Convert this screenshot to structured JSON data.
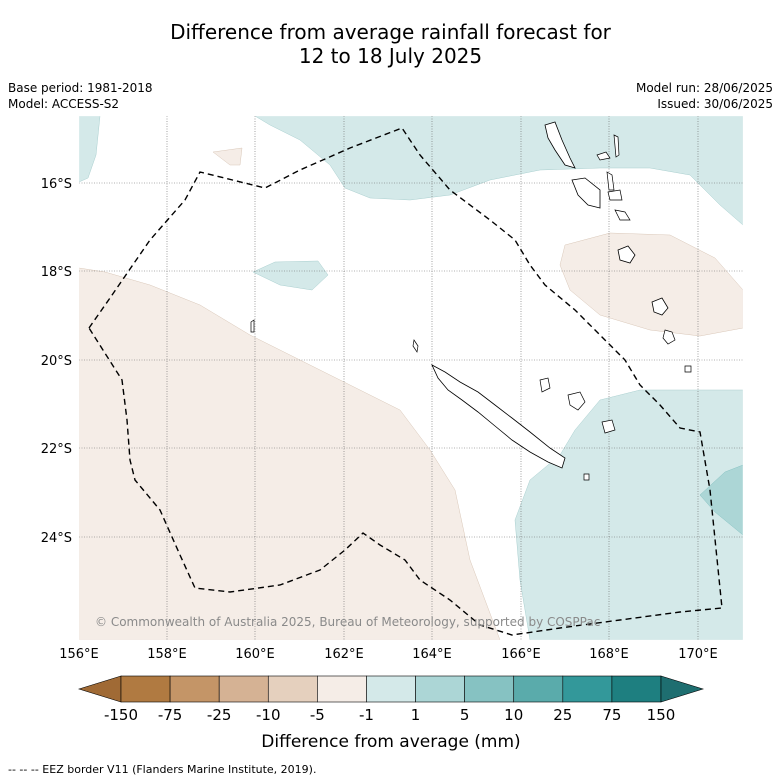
{
  "title_line1": "Difference from average rainfall forecast for",
  "title_line2": "12 to 18 July 2025",
  "base_period": "Base period: 1981-2018",
  "model": "Model: ACCESS-S2",
  "model_run": "Model run: 28/06/2025",
  "issued": "Issued: 30/06/2025",
  "copyright": "© Commonwealth of Australia 2025, Bureau of Meteorology, supported by COSPPac",
  "lat_labels": [
    "16°S",
    "18°S",
    "20°S",
    "22°S",
    "24°S"
  ],
  "lon_labels": [
    "156°E",
    "158°E",
    "160°E",
    "162°E",
    "164°E",
    "166°E",
    "168°E",
    "170°E"
  ],
  "colorbar": {
    "title": "Difference from average (mm)",
    "labels": [
      "-150",
      "-75",
      "-25",
      "-10",
      "-5",
      "-1",
      "1",
      "5",
      "10",
      "25",
      "75",
      "150"
    ],
    "colors": [
      "#b07a41",
      "#c49567",
      "#d5b294",
      "#e5d0be",
      "#f5ede7",
      "#ffffff",
      "#d4e9e9",
      "#acd6d6",
      "#86c2c2",
      "#5aabab",
      "#33989a",
      "#1e7f80"
    ],
    "under_color": "#a06a35",
    "over_color": "#1e6e70"
  },
  "footnote": "--  --  -- EEZ border V11 (Flanders Marine Institute, 2019)."
}
